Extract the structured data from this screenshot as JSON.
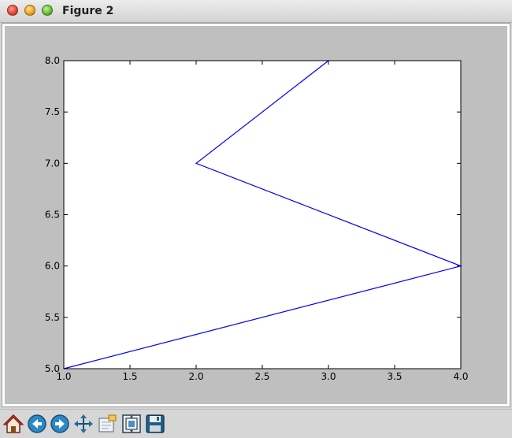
{
  "window": {
    "title": "Figure 2"
  },
  "toolbar": {
    "buttons": [
      {
        "icon": "home-icon"
      },
      {
        "icon": "back-icon"
      },
      {
        "icon": "forward-icon"
      },
      {
        "icon": "pan-icon"
      },
      {
        "icon": "zoom-to-rect-icon"
      },
      {
        "icon": "subplots-configure-icon"
      },
      {
        "icon": "save-icon"
      }
    ]
  },
  "colors": {
    "line": "#0000ff",
    "figure_background": "#bfbfbf",
    "axes_background": "#ffffff"
  },
  "chart_data": {
    "type": "line",
    "title": "",
    "xlabel": "",
    "ylabel": "",
    "x": [
      1,
      4,
      2,
      3
    ],
    "series": [
      {
        "values": [
          5,
          6,
          7,
          8
        ]
      }
    ],
    "xlim": [
      1.0,
      4.0
    ],
    "ylim": [
      5.0,
      8.0
    ],
    "xticks": [
      "1.0",
      "1.5",
      "2.0",
      "2.5",
      "3.0",
      "3.5",
      "4.0"
    ],
    "yticks": [
      "5.0",
      "5.5",
      "6.0",
      "6.5",
      "7.0",
      "7.5",
      "8.0"
    ],
    "grid": false,
    "legend": "none"
  }
}
